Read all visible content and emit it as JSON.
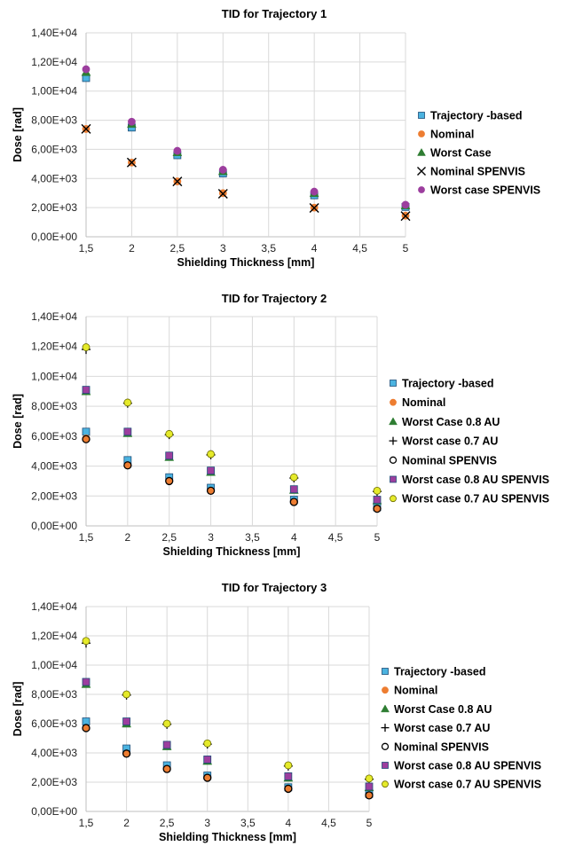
{
  "chart_data": [
    {
      "type": "scatter",
      "title": "TID for Trajectory 1",
      "xlabel": "Shielding Thickness [mm]",
      "ylabel": "Dose [rad]",
      "xlim": [
        1.5,
        5
      ],
      "ylim": [
        0,
        14000
      ],
      "x_ticks": [
        "1,5",
        "2",
        "2,5",
        "3",
        "3,5",
        "4",
        "4,5",
        "5"
      ],
      "y_ticks": [
        "0,00E+00",
        "2,00E+03",
        "4,00E+03",
        "6,00E+03",
        "8,00E+03",
        "1,00E+04",
        "1,20E+04",
        "1,40E+04"
      ],
      "grid": true,
      "legend_position": "right",
      "x": [
        1.5,
        2,
        2.5,
        3,
        4,
        5
      ],
      "series": [
        {
          "name": "Trajectory -based",
          "marker": "square",
          "color": "#4bb3e0",
          "values": [
            10900,
            7500,
            5600,
            4350,
            2850,
            2050
          ]
        },
        {
          "name": "Nominal",
          "marker": "circle",
          "color": "#ed7d31",
          "values": [
            7400,
            5100,
            3800,
            3000,
            2000,
            1450
          ]
        },
        {
          "name": "Worst Case",
          "marker": "triangle",
          "color": "#2e7d32",
          "values": [
            11300,
            7750,
            5800,
            4500,
            3000,
            2150
          ]
        },
        {
          "name": "Nominal SPENVIS",
          "marker": "x",
          "color": "#000000",
          "values": [
            7400,
            5100,
            3800,
            2950,
            1980,
            1420
          ]
        },
        {
          "name": "Worst case SPENVIS",
          "marker": "circle",
          "color": "#9c3e9e",
          "values": [
            11500,
            7900,
            5900,
            4600,
            3100,
            2200
          ]
        }
      ]
    },
    {
      "type": "scatter",
      "title": "TID for Trajectory 2",
      "xlabel": "Shielding Thickness [mm]",
      "ylabel": "Dose [rad]",
      "xlim": [
        1.5,
        5
      ],
      "ylim": [
        0,
        14000
      ],
      "x_ticks": [
        "1,5",
        "2",
        "2,5",
        "3",
        "3,5",
        "4",
        "4,5",
        "5"
      ],
      "y_ticks": [
        "0,00E+00",
        "2,00E+03",
        "4,00E+03",
        "6,00E+03",
        "8,00E+03",
        "1,00E+04",
        "1,20E+04",
        "1,40E+04"
      ],
      "grid": true,
      "legend_position": "right",
      "x": [
        1.5,
        2,
        2.5,
        3,
        4,
        5
      ],
      "series": [
        {
          "name": "Trajectory -based",
          "marker": "square",
          "color": "#4bb3e0",
          "values": [
            6300,
            4400,
            3250,
            2550,
            1750,
            1250
          ]
        },
        {
          "name": "Nominal",
          "marker": "circle",
          "color": "#ed7d31",
          "values": [
            5850,
            4050,
            3000,
            2350,
            1600,
            1150
          ]
        },
        {
          "name": "Worst Case 0.8 AU",
          "marker": "triangle",
          "color": "#2e7d32",
          "values": [
            9000,
            6200,
            4600,
            3600,
            2400,
            1700
          ]
        },
        {
          "name": "Worst case 0.7 AU",
          "marker": "plus",
          "color": "#000000",
          "values": [
            11800,
            8200,
            6100,
            4750,
            3200,
            2300
          ]
        },
        {
          "name": "Nominal SPENVIS",
          "marker": "open-circle",
          "color": "#000000",
          "values": [
            5800,
            4050,
            3000,
            2350,
            1600,
            1150
          ]
        },
        {
          "name": "Worst case 0.8 AU SPENVIS",
          "marker": "square",
          "color": "#9c3e9e",
          "values": [
            9100,
            6300,
            4700,
            3700,
            2450,
            1750
          ]
        },
        {
          "name": "Worst case 0.7 AU SPENVIS",
          "marker": "circle",
          "color": "#e5ea2a",
          "values": [
            11950,
            8250,
            6150,
            4800,
            3250,
            2350
          ]
        }
      ]
    },
    {
      "type": "scatter",
      "title": "TID for Trajectory 3",
      "xlabel": "Shielding Thickness [mm]",
      "ylabel": "Dose [rad]",
      "xlim": [
        1.5,
        5
      ],
      "ylim": [
        0,
        14000
      ],
      "x_ticks": [
        "1,5",
        "2",
        "2,5",
        "3",
        "3,5",
        "4",
        "4,5",
        "5"
      ],
      "y_ticks": [
        "0,00E+00",
        "2,00E+03",
        "4,00E+03",
        "6,00E+03",
        "8,00E+03",
        "1,00E+04",
        "1,20E+04",
        "1,40E+04"
      ],
      "grid": true,
      "legend_position": "right",
      "x": [
        1.5,
        2,
        2.5,
        3,
        4,
        5
      ],
      "series": [
        {
          "name": "Trajectory -based",
          "marker": "square",
          "color": "#4bb3e0",
          "values": [
            6150,
            4300,
            3150,
            2450,
            1650,
            1200
          ]
        },
        {
          "name": "Nominal",
          "marker": "circle",
          "color": "#ed7d31",
          "values": [
            5700,
            3950,
            2900,
            2300,
            1550,
            1100
          ]
        },
        {
          "name": "Worst Case 0.8 AU",
          "marker": "triangle",
          "color": "#2e7d32",
          "values": [
            8700,
            6000,
            4450,
            3450,
            2300,
            1650
          ]
        },
        {
          "name": "Worst case 0.7 AU",
          "marker": "plus",
          "color": "#000000",
          "values": [
            11500,
            7950,
            5950,
            4600,
            3100,
            2200
          ]
        },
        {
          "name": "Nominal SPENVIS",
          "marker": "open-circle",
          "color": "#000000",
          "values": [
            5700,
            3950,
            2900,
            2300,
            1550,
            1100
          ]
        },
        {
          "name": "Worst case 0.8 AU SPENVIS",
          "marker": "square",
          "color": "#9c3e9e",
          "values": [
            8850,
            6150,
            4550,
            3550,
            2400,
            1700
          ]
        },
        {
          "name": "Worst case 0.7 AU SPENVIS",
          "marker": "circle",
          "color": "#e5ea2a",
          "values": [
            11650,
            8000,
            6000,
            4650,
            3150,
            2250
          ]
        }
      ]
    }
  ]
}
